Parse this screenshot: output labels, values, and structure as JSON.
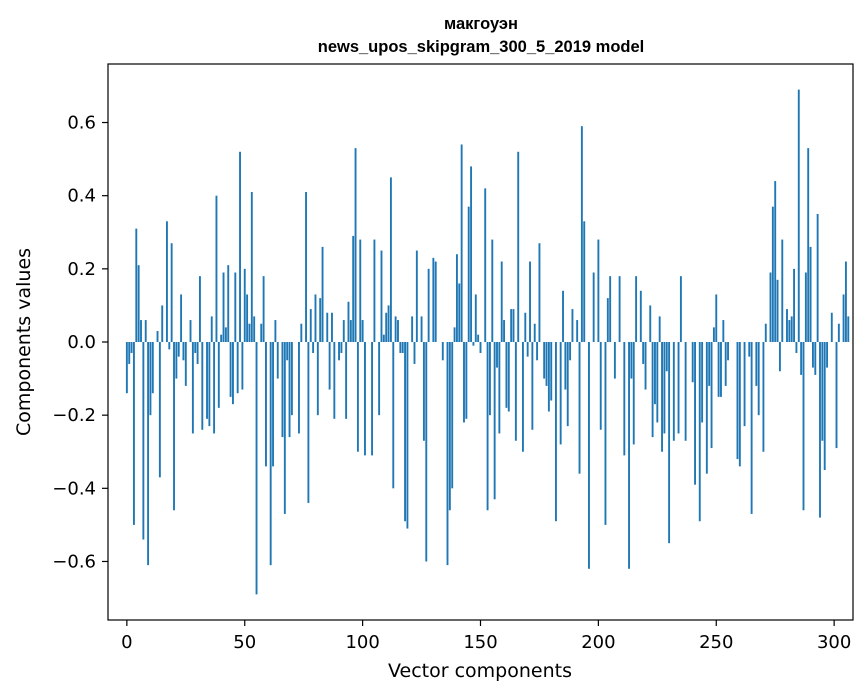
{
  "chart_data": {
    "type": "bar",
    "title_line1": "макгоуэн",
    "title_line2": "news_upos_skipgram_300_5_2019 model",
    "xlabel": "Vector components",
    "ylabel": "Components values",
    "xlim": [
      -8,
      308
    ],
    "ylim": [
      -0.76,
      0.76
    ],
    "xticks": [
      0,
      50,
      100,
      150,
      200,
      250,
      300
    ],
    "yticks": [
      -0.6,
      -0.4,
      -0.2,
      0.0,
      0.2,
      0.4,
      0.6
    ],
    "ytick_labels": [
      "−0.6",
      "−0.4",
      "−0.2",
      "0.0",
      "0.2",
      "0.4",
      "0.6"
    ],
    "bar_color": "#1f77b4",
    "grid": false,
    "values": [
      -0.14,
      -0.06,
      -0.03,
      -0.5,
      0.31,
      0.21,
      0.06,
      -0.54,
      0.06,
      -0.61,
      -0.2,
      -0.14,
      0.0,
      0.03,
      -0.37,
      0.1,
      0.0,
      0.33,
      -0.02,
      0.27,
      -0.46,
      -0.1,
      -0.04,
      0.13,
      -0.05,
      -0.12,
      0.0,
      0.06,
      -0.25,
      -0.03,
      -0.06,
      0.18,
      -0.24,
      0.0,
      -0.21,
      -0.23,
      0.07,
      -0.25,
      0.4,
      -0.18,
      0.02,
      0.19,
      0.04,
      0.21,
      -0.15,
      -0.17,
      0.19,
      -0.14,
      0.52,
      -0.13,
      0.2,
      0.13,
      0.05,
      0.41,
      0.07,
      -0.69,
      0.0,
      0.05,
      0.18,
      -0.34,
      0.0,
      -0.61,
      -0.34,
      0.06,
      -0.1,
      0.0,
      -0.26,
      -0.47,
      -0.05,
      -0.26,
      -0.2,
      0.0,
      0.0,
      -0.25,
      0.05,
      0.0,
      0.41,
      -0.44,
      0.09,
      -0.03,
      0.13,
      -0.2,
      0.12,
      0.26,
      0.0,
      0.08,
      -0.13,
      0.08,
      -0.21,
      0.0,
      -0.05,
      -0.03,
      0.06,
      -0.21,
      0.11,
      0.06,
      0.29,
      0.53,
      -0.3,
      0.28,
      0.06,
      -0.31,
      0.0,
      0.0,
      -0.31,
      0.28,
      0.0,
      -0.2,
      0.25,
      0.02,
      0.08,
      0.1,
      0.45,
      -0.4,
      0.07,
      0.06,
      -0.03,
      -0.03,
      -0.49,
      -0.51,
      0.0,
      0.07,
      -0.06,
      0.25,
      0.0,
      0.07,
      -0.27,
      -0.6,
      0.2,
      0.0,
      0.23,
      0.22,
      0.0,
      0.0,
      -0.05,
      0.0,
      -0.61,
      -0.46,
      -0.4,
      0.04,
      0.24,
      0.16,
      0.54,
      -0.22,
      -0.21,
      0.37,
      0.48,
      -0.01,
      0.13,
      0.02,
      -0.03,
      0.0,
      0.42,
      -0.46,
      -0.2,
      0.28,
      -0.43,
      -0.07,
      -0.25,
      0.22,
      0.06,
      -0.18,
      -0.19,
      0.09,
      0.09,
      -0.27,
      0.52,
      0.0,
      -0.3,
      0.08,
      -0.04,
      0.22,
      -0.24,
      0.05,
      -0.05,
      0.27,
      0.0,
      -0.1,
      -0.12,
      -0.19,
      -0.16,
      0.0,
      -0.49,
      0.0,
      -0.28,
      0.14,
      -0.13,
      -0.23,
      -0.05,
      0.09,
      0.0,
      0.06,
      -0.36,
      0.59,
      0.33,
      0.0,
      -0.62,
      0.0,
      0.19,
      0.0,
      0.28,
      -0.24,
      0.0,
      -0.5,
      0.12,
      0.18,
      0.0,
      -0.1,
      0.0,
      0.18,
      0.0,
      -0.31,
      0.0,
      -0.62,
      -0.1,
      -0.28,
      0.18,
      0.0,
      0.14,
      -0.06,
      -0.13,
      0.0,
      0.1,
      -0.26,
      -0.17,
      -0.22,
      0.07,
      -0.3,
      -0.25,
      -0.08,
      -0.55,
      0.0,
      -0.27,
      0.0,
      -0.25,
      0.18,
      0.0,
      -0.27,
      0.0,
      0.0,
      -0.11,
      -0.39,
      0.0,
      -0.49,
      -0.22,
      0.0,
      -0.36,
      -0.12,
      -0.29,
      0.04,
      0.13,
      -0.15,
      -0.15,
      0.06,
      -0.12,
      -0.05,
      0.0,
      0.0,
      0.0,
      -0.32,
      -0.34,
      0.0,
      -0.23,
      0.0,
      -0.04,
      -0.47,
      0.0,
      -0.12,
      -0.2,
      0.0,
      -0.3,
      0.05,
      0.0,
      0.19,
      0.37,
      0.44,
      0.17,
      -0.08,
      0.28,
      0.0,
      0.09,
      0.06,
      0.07,
      0.2,
      -0.03,
      0.69,
      -0.09,
      -0.46,
      0.19,
      0.53,
      0.26,
      -0.07,
      -0.09,
      0.35,
      -0.48,
      -0.27,
      -0.35,
      -0.07,
      0.0,
      0.08,
      0.0,
      -0.29,
      0.05,
      0.0,
      0.13,
      0.22,
      0.07
    ]
  }
}
